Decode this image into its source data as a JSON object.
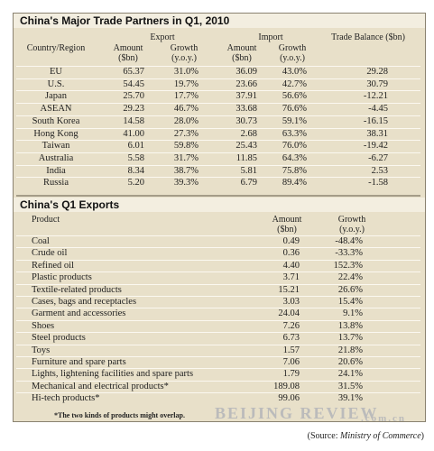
{
  "partners": {
    "title": "China's Major Trade Partners in Q1, 2010",
    "headers": {
      "country": "Country/Region",
      "export": "Export",
      "import": "Import",
      "balance": "Trade Balance ($bn)",
      "amount": [
        "Amount",
        "($bn)"
      ],
      "growth": [
        "Growth",
        "(y.o.y.)"
      ]
    },
    "rows": [
      [
        "EU",
        "65.37",
        "31.0%",
        "36.09",
        "43.0%",
        "29.28"
      ],
      [
        "U.S.",
        "54.45",
        "19.7%",
        "23.66",
        "42.7%",
        "30.79"
      ],
      [
        "Japan",
        "25.70",
        "17.7%",
        "37.91",
        "56.6%",
        "-12.21"
      ],
      [
        "ASEAN",
        "29.23",
        "46.7%",
        "33.68",
        "76.6%",
        "-4.45"
      ],
      [
        "South Korea",
        "14.58",
        "28.0%",
        "30.73",
        "59.1%",
        "-16.15"
      ],
      [
        "Hong Kong",
        "41.00",
        "27.3%",
        "2.68",
        "63.3%",
        "38.31"
      ],
      [
        "Taiwan",
        "6.01",
        "59.8%",
        "25.43",
        "76.0%",
        "-19.42"
      ],
      [
        "Australia",
        "5.58",
        "31.7%",
        "11.85",
        "64.3%",
        "-6.27"
      ],
      [
        "India",
        "8.34",
        "38.7%",
        "5.81",
        "75.8%",
        "2.53"
      ],
      [
        "Russia",
        "5.20",
        "39.3%",
        "6.79",
        "89.4%",
        "-1.58"
      ]
    ]
  },
  "exports": {
    "title": "China's Q1 Exports",
    "headers": {
      "product": "Product",
      "amount": [
        "Amount",
        "($bn)"
      ],
      "growth": [
        "Growth",
        "(y.o.y.)"
      ]
    },
    "rows": [
      [
        "Coal",
        "0.49",
        "-48.4%"
      ],
      [
        "Crude oil",
        "0.36",
        "-33.3%"
      ],
      [
        "Refined oil",
        "4.40",
        "152.3%"
      ],
      [
        "Plastic products",
        "3.71",
        "22.4%"
      ],
      [
        "Textile-related products",
        "15.21",
        "26.6%"
      ],
      [
        "Cases, bags and receptacles",
        "3.03",
        "15.4%"
      ],
      [
        "Garment and accessories",
        "24.04",
        "9.1%"
      ],
      [
        "Shoes",
        "7.26",
        "13.8%"
      ],
      [
        "Steel products",
        "6.73",
        "13.7%"
      ],
      [
        "Toys",
        "1.57",
        "21.8%"
      ],
      [
        "Furniture and spare parts",
        "7.06",
        "20.6%"
      ],
      [
        "Lights, lightening facilities and spare parts",
        "1.79",
        "24.1%"
      ],
      [
        "Mechanical and electrical products*",
        "189.08",
        "31.5%"
      ],
      [
        "Hi-tech products*",
        "99.06",
        "39.1%"
      ]
    ],
    "footnote": "*The two kinds of products might overlap."
  },
  "footer": {
    "watermark": "BEIJING REVIEW",
    "domain": ".com.cn",
    "source_prefix": "(Source: ",
    "source_name": "Ministry of Commerce",
    "source_suffix": ")"
  }
}
